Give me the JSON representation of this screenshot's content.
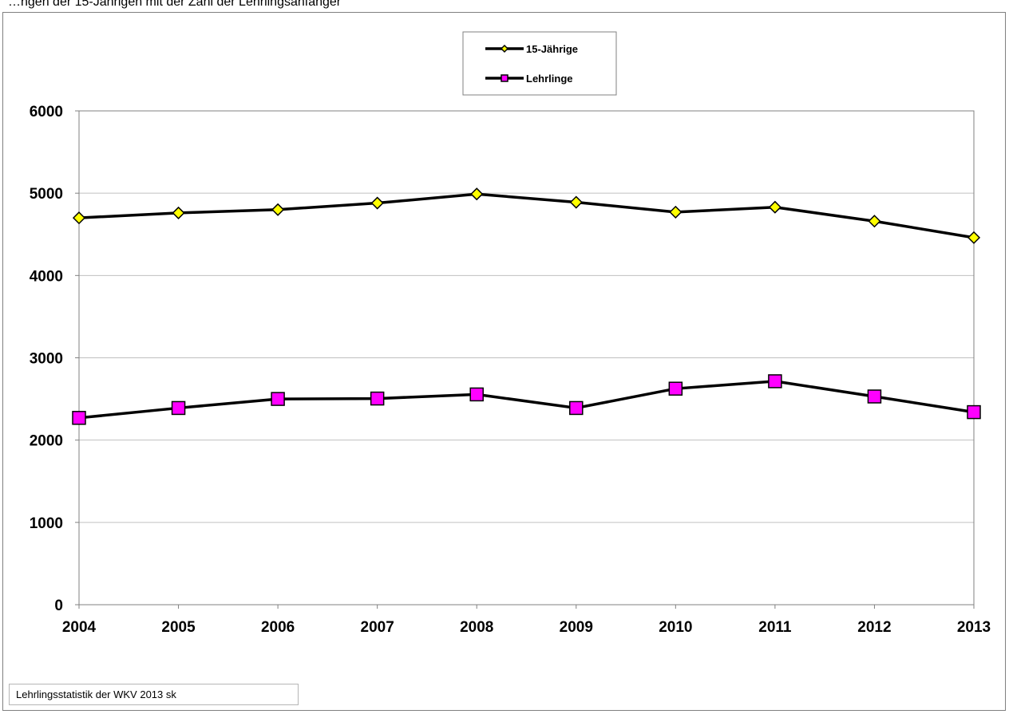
{
  "header_text": "…ngen der 15-Jährigen mit der Zahl der Lehrlingsanfänger",
  "source_note": "Lehrlingsstatistik der WKV 2013  sk",
  "chart_data": {
    "type": "line",
    "title": "",
    "xlabel": "",
    "ylabel": "",
    "categories": [
      "2004",
      "2005",
      "2006",
      "2007",
      "2008",
      "2009",
      "2010",
      "2011",
      "2012",
      "2013"
    ],
    "ylim": [
      0,
      6000
    ],
    "yticks": [
      0,
      1000,
      2000,
      3000,
      4000,
      5000,
      6000
    ],
    "grid": true,
    "legend_position": "top-center",
    "series": [
      {
        "name": "15-Jährige",
        "marker": "diamond",
        "color": "#ffff00",
        "values": [
          4700,
          4760,
          4800,
          4880,
          4990,
          4890,
          4770,
          4830,
          4660,
          4460
        ]
      },
      {
        "name": "Lehrlinge",
        "marker": "square",
        "color": "#ff00ff",
        "values": [
          2270,
          2390,
          2500,
          2505,
          2555,
          2390,
          2625,
          2715,
          2530,
          2340
        ]
      }
    ]
  }
}
